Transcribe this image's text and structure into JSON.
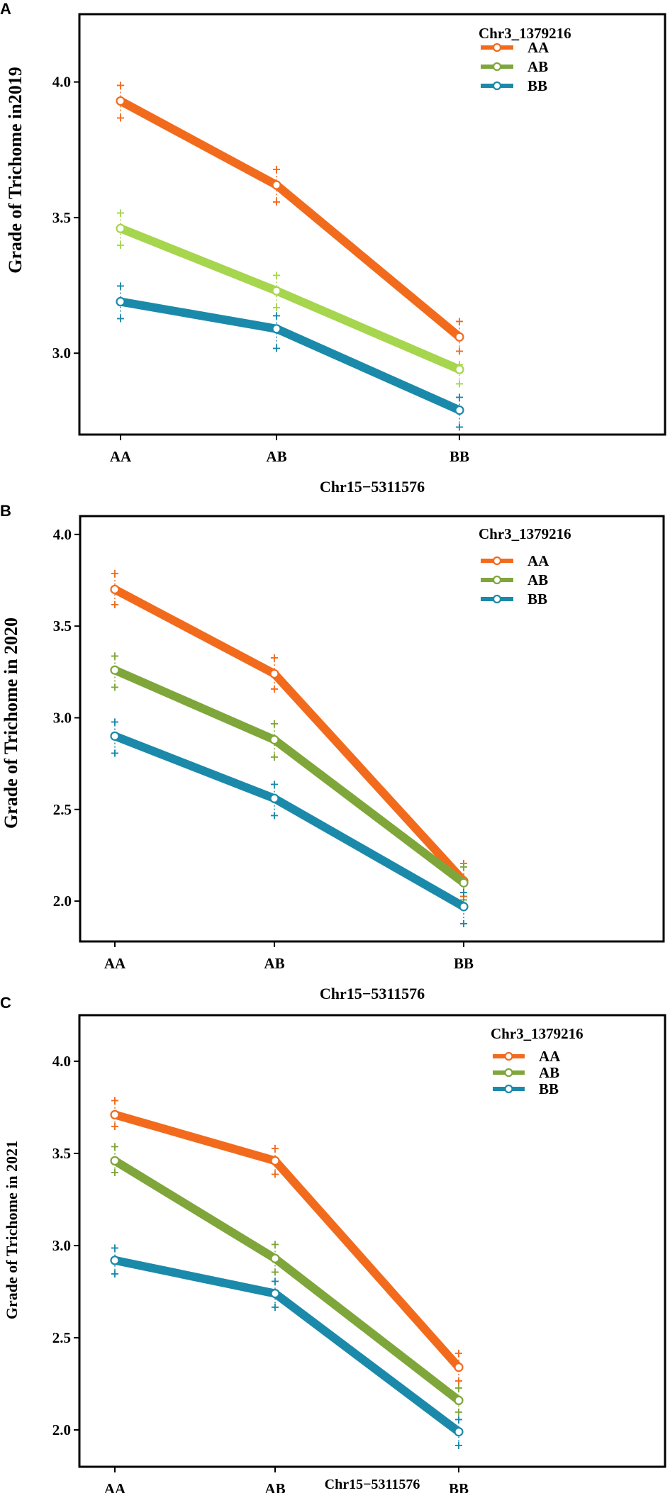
{
  "colors": {
    "AA": "#f26b1d",
    "AB": "#7fa63a",
    "AB_light": "#a6d54e",
    "BB": "#1b8aaa"
  },
  "chart_data": [
    {
      "panel": "A",
      "type": "line",
      "categories": [
        "AA",
        "AB",
        "BB"
      ],
      "xlabel": "Chr15−5311576",
      "ylabel": "Grade of Trichome in2019",
      "ylim": [
        2.7,
        4.25
      ],
      "yticks": [
        3.0,
        3.5,
        4.0
      ],
      "ytick_labels": [
        "3.0",
        "3.5",
        "4.0"
      ],
      "legend_title": "Chr3_1379216",
      "series": [
        {
          "name": "AA",
          "color": "#f26b1d",
          "values": [
            3.93,
            3.62,
            3.06
          ],
          "upper": [
            3.99,
            3.68,
            3.12
          ],
          "lower": [
            3.87,
            3.56,
            3.01
          ]
        },
        {
          "name": "AB",
          "color": "#a6d54e",
          "legend_color": "#7fa63a",
          "values": [
            3.46,
            3.23,
            2.94
          ],
          "upper": [
            3.52,
            3.29,
            2.96
          ],
          "lower": [
            3.4,
            3.17,
            2.89
          ]
        },
        {
          "name": "BB",
          "color": "#1b8aaa",
          "values": [
            3.19,
            3.09,
            2.79
          ],
          "upper": [
            3.25,
            3.14,
            2.84
          ],
          "lower": [
            3.13,
            3.02,
            2.73
          ]
        }
      ]
    },
    {
      "panel": "B",
      "type": "line",
      "categories": [
        "AA",
        "AB",
        "BB"
      ],
      "xlabel": "Chr15−5311576",
      "ylabel": "Grade of Trichome in 2020",
      "ylim": [
        1.78,
        4.1
      ],
      "yticks": [
        2.0,
        2.5,
        3.0,
        3.5,
        4.0
      ],
      "ytick_labels": [
        "2.0",
        "2.5",
        "3.0",
        "3.5",
        "4.0"
      ],
      "legend_title": "Chr3_1379216",
      "series": [
        {
          "name": "AA",
          "color": "#f26b1d",
          "values": [
            3.7,
            3.24,
            2.11
          ],
          "upper": [
            3.79,
            3.33,
            2.21
          ],
          "lower": [
            3.62,
            3.16,
            2.03
          ]
        },
        {
          "name": "AB",
          "color": "#7fa63a",
          "values": [
            3.26,
            2.88,
            2.1
          ],
          "upper": [
            3.34,
            2.97,
            2.19
          ],
          "lower": [
            3.17,
            2.79,
            2.01
          ]
        },
        {
          "name": "BB",
          "color": "#1b8aaa",
          "values": [
            2.9,
            2.56,
            1.97
          ],
          "upper": [
            2.98,
            2.64,
            2.05
          ],
          "lower": [
            2.81,
            2.47,
            1.88
          ]
        }
      ]
    },
    {
      "panel": "C",
      "type": "line",
      "categories": [
        "AA",
        "AB",
        "BB"
      ],
      "xlabel": "Chr15−5311576",
      "ylabel": "Grade of Trichome in 2021",
      "ylim": [
        1.8,
        4.25
      ],
      "yticks": [
        2.0,
        2.5,
        3.0,
        3.5,
        4.0
      ],
      "ytick_labels": [
        "2.0",
        "2.5",
        "3.0",
        "3.5",
        "4.0"
      ],
      "legend_title": "Chr3_1379216",
      "series": [
        {
          "name": "AA",
          "color": "#f26b1d",
          "values": [
            3.71,
            3.46,
            2.34
          ],
          "upper": [
            3.79,
            3.53,
            2.42
          ],
          "lower": [
            3.65,
            3.39,
            2.27
          ]
        },
        {
          "name": "AB",
          "color": "#7fa63a",
          "values": [
            3.46,
            2.93,
            2.16
          ],
          "upper": [
            3.54,
            3.01,
            2.23
          ],
          "lower": [
            3.4,
            2.86,
            2.1
          ]
        },
        {
          "name": "BB",
          "color": "#1b8aaa",
          "values": [
            2.92,
            2.74,
            1.99
          ],
          "upper": [
            2.99,
            2.81,
            2.06
          ],
          "lower": [
            2.85,
            2.67,
            1.92
          ]
        }
      ]
    }
  ]
}
